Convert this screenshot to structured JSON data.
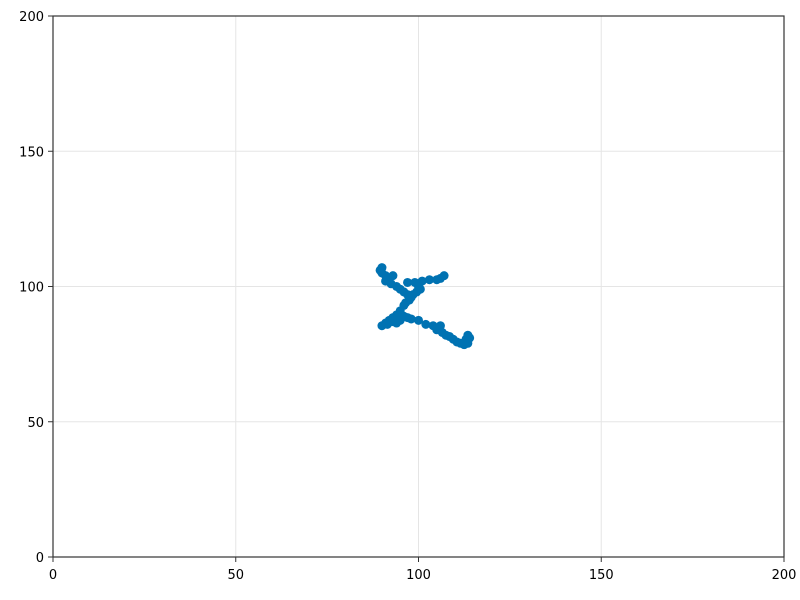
{
  "chart_data": {
    "type": "scatter",
    "title": "",
    "xlabel": "",
    "ylabel": "",
    "xlim": [
      0,
      200
    ],
    "ylim": [
      0,
      200
    ],
    "xticks": [
      0,
      50,
      100,
      150,
      200
    ],
    "yticks": [
      0,
      50,
      100,
      150,
      200
    ],
    "grid": true,
    "legend": "none",
    "series": [
      {
        "color": "#0072b2",
        "points": [
          [
            90,
            107
          ],
          [
            89.5,
            106
          ],
          [
            90,
            105
          ],
          [
            91,
            104
          ],
          [
            92,
            103
          ],
          [
            93,
            104
          ],
          [
            91,
            102
          ],
          [
            92.5,
            101
          ],
          [
            94,
            100
          ],
          [
            95,
            99
          ],
          [
            96,
            98
          ],
          [
            97,
            97
          ],
          [
            98,
            96
          ],
          [
            97.5,
            95
          ],
          [
            96.5,
            94
          ],
          [
            97,
            101.5
          ],
          [
            99,
            101.5
          ],
          [
            101,
            102
          ],
          [
            103,
            102.5
          ],
          [
            105,
            102.5
          ],
          [
            106,
            103
          ],
          [
            107,
            104
          ],
          [
            100,
            100
          ],
          [
            100.5,
            99
          ],
          [
            99.5,
            98
          ],
          [
            98.5,
            97
          ],
          [
            97.5,
            96
          ],
          [
            96,
            93
          ],
          [
            95,
            91
          ],
          [
            94,
            89.5
          ],
          [
            93,
            88.5
          ],
          [
            92,
            87.5
          ],
          [
            91,
            86.5
          ],
          [
            90,
            85.5
          ],
          [
            91.5,
            86
          ],
          [
            93,
            87
          ],
          [
            94,
            86.5
          ],
          [
            95,
            87.5
          ],
          [
            96,
            89
          ],
          [
            97,
            88.5
          ],
          [
            98,
            88
          ],
          [
            100,
            87.5
          ],
          [
            102,
            86
          ],
          [
            104,
            85.5
          ],
          [
            105,
            84
          ],
          [
            106,
            85.5
          ],
          [
            106.5,
            83
          ],
          [
            107.5,
            82
          ],
          [
            108.5,
            81.5
          ],
          [
            109.5,
            80.5
          ],
          [
            110.5,
            79.5
          ],
          [
            111.5,
            79
          ],
          [
            112.5,
            78.5
          ],
          [
            113.5,
            79
          ],
          [
            113,
            80.5
          ],
          [
            114,
            81
          ],
          [
            113.5,
            82
          ]
        ]
      }
    ]
  }
}
